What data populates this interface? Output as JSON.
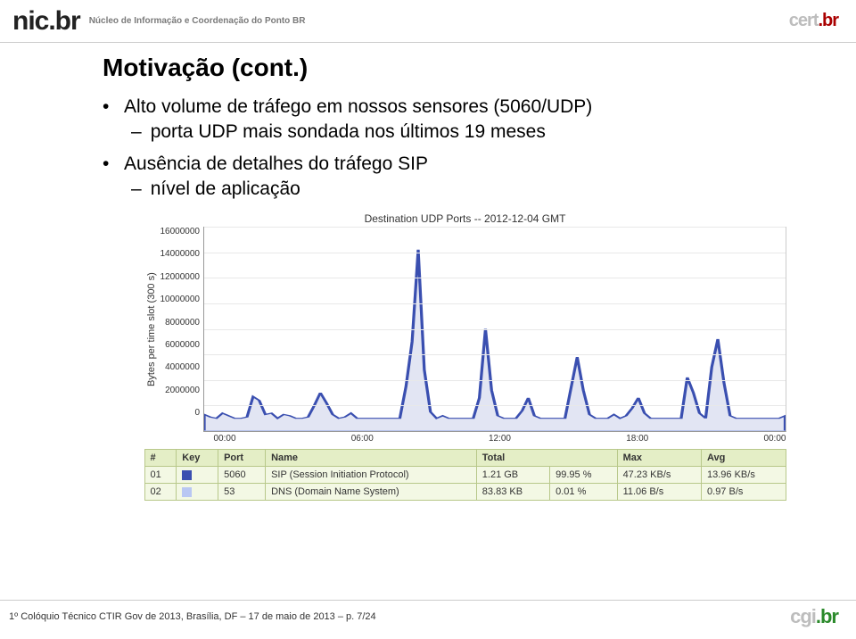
{
  "header": {
    "logo_main": "nic.br",
    "subtitle": "Núcleo de Informação e Coordenação do Ponto BR",
    "logo_right_prefix": "cert",
    "logo_right_suffix": ".br"
  },
  "slide": {
    "title": "Motivação (cont.)",
    "bullets": [
      {
        "text": "Alto volume de tráfego em nossos sensores (5060/UDP)",
        "sub": [
          "porta UDP mais sondada nos últimos 19 meses"
        ]
      },
      {
        "text": "Ausência de detalhes do tráfego SIP",
        "sub": [
          "nível de aplicação"
        ]
      }
    ]
  },
  "chart": {
    "title": "Destination UDP Ports -- 2012-12-04 GMT",
    "ylabel": "Bytes per time slot (300 s)",
    "ylim": [
      0,
      16000000
    ],
    "yticks": [
      "16000000",
      "14000000",
      "12000000",
      "10000000",
      "8000000",
      "6000000",
      "4000000",
      "2000000",
      "0"
    ],
    "xticks": [
      "00:00",
      "06:00",
      "12:00",
      "18:00",
      "00:00"
    ],
    "grid_color": "#e8e8e8",
    "line_color": "#3a4fb0",
    "fill_color": "#3a4fb0",
    "background_color": "#ffffff",
    "series_5060": [
      1.3,
      1.1,
      1.0,
      1.4,
      1.2,
      1.0,
      1.0,
      1.1,
      2.7,
      2.4,
      1.3,
      1.4,
      1.0,
      1.3,
      1.2,
      1.0,
      1.0,
      1.1,
      2.0,
      3.0,
      2.2,
      1.3,
      1.0,
      1.1,
      1.4,
      1.0,
      1.0,
      1.0,
      1.0,
      1.0,
      1.0,
      1.0,
      1.0,
      3.5,
      7.0,
      14.2,
      4.8,
      1.5,
      1.0,
      1.2,
      1.0,
      1.0,
      1.0,
      1.0,
      1.0,
      2.6,
      8.0,
      3.2,
      1.2,
      1.0,
      1.0,
      1.0,
      1.6,
      2.6,
      1.2,
      1.0,
      1.0,
      1.0,
      1.0,
      1.0,
      3.4,
      5.8,
      3.2,
      1.3,
      1.0,
      1.0,
      1.0,
      1.3,
      1.0,
      1.2,
      1.8,
      2.6,
      1.4,
      1.0,
      1.0,
      1.0,
      1.0,
      1.0,
      1.0,
      4.2,
      3.0,
      1.4,
      1.0,
      5.0,
      7.2,
      3.8,
      1.2,
      1.0,
      1.0,
      1.0,
      1.0,
      1.0,
      1.0,
      1.0,
      1.0,
      1.2
    ],
    "series_53": [
      0.01,
      0.01,
      0.01,
      0.01,
      0.01,
      0.01,
      0.01,
      0.01,
      0.01,
      0.01,
      0.01,
      0.01,
      0.01,
      0.01,
      0.01,
      0.01,
      0.01,
      0.01,
      0.01,
      0.01,
      0.01,
      0.01,
      0.01,
      0.01,
      0.01,
      0.01,
      0.01,
      0.01,
      0.01,
      0.01,
      0.01,
      0.01,
      0.01,
      0.01,
      0.01,
      0.01,
      0.01,
      0.01,
      0.01,
      0.01,
      0.01,
      0.01,
      0.01,
      0.01,
      0.01,
      0.01,
      0.01,
      0.01,
      0.01,
      0.01,
      0.01,
      0.01,
      0.01,
      0.01,
      0.01,
      0.01,
      0.01,
      0.01,
      0.01,
      0.01,
      0.01,
      0.01,
      0.01,
      0.01,
      0.01,
      0.01,
      0.01,
      0.01,
      0.01,
      0.01,
      0.01,
      0.01,
      0.01,
      0.01,
      0.01,
      0.01,
      0.01,
      0.01,
      0.01,
      0.01,
      0.01,
      0.01,
      0.01,
      0.01,
      0.01,
      0.01,
      0.01,
      0.01,
      0.01,
      0.01,
      0.01,
      0.01,
      0.01,
      0.01,
      0.01,
      0.01
    ]
  },
  "table": {
    "headers": [
      "#",
      "Key",
      "Port",
      "Name",
      "Total",
      "%",
      "Max",
      "Avg"
    ],
    "rows": [
      {
        "idx": "01",
        "color": "#3a4fb0",
        "port": "5060",
        "name": "SIP (Session Initiation Protocol)",
        "total": "1.21 GB",
        "pct": "99.95 %",
        "max": "47.23 KB/s",
        "avg": "13.96 KB/s"
      },
      {
        "idx": "02",
        "color": "#b9c7f3",
        "port": "53",
        "name": "DNS (Domain Name System)",
        "total": "83.83 KB",
        "pct": "0.01 %",
        "max": "11.06 B/s",
        "avg": "0.97 B/s"
      }
    ]
  },
  "footer": {
    "text": "1º Colóquio Técnico CTIR Gov de 2013, Brasília, DF – 17 de maio de 2013 – p. 7/24",
    "logo_prefix": "cgi",
    "logo_suffix": ".br"
  }
}
